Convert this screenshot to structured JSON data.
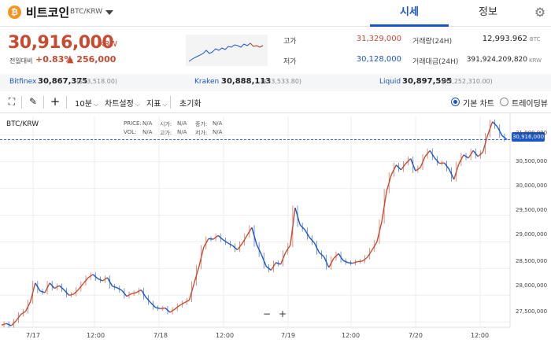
{
  "header": {
    "coin_icon": "bitcoin-icon",
    "coin_symbol": "₿",
    "coin_name": "비트코인",
    "pair": "BTC/KRW",
    "tabs": [
      {
        "label": "시세",
        "active": true
      },
      {
        "label": "정보",
        "active": false
      }
    ],
    "settings_icon": "gear-icon"
  },
  "price": {
    "current": "30,916,000",
    "unit": "KRW",
    "prev_label": "전일대비",
    "change_pct": "+0.83%",
    "change_abs": "▲ 256,000",
    "color": "#c84a31"
  },
  "stats": {
    "high_label": "고가",
    "high_value": "31,329,000",
    "low_label": "저가",
    "low_value": "30,128,000",
    "volume_label": "거래량(24H)",
    "volume_value": "12,993.962",
    "volume_unit": "BTC",
    "amount_label": "거래대금(24H)",
    "amount_value": "391,924,209,820",
    "amount_unit": "KRW"
  },
  "exchanges": [
    {
      "name": "Bitfinex",
      "price": "30,867,375",
      "usd": "($23,518.00)"
    },
    {
      "name": "Kraken",
      "price": "30,888,113",
      "usd": "($23,533.80)"
    },
    {
      "name": "Liquid",
      "price": "30,897,595",
      "usd": "(¥3,252,310.00)"
    }
  ],
  "toolbar": {
    "fullscreen_icon": "expand-icon",
    "draw_icon": "pencil-icon",
    "crosshair_icon": "crosshair-icon",
    "interval": "10분",
    "chart_settings": "차트설정",
    "indicators": "지표",
    "reset": "초기화",
    "view_basic": "기본 차트",
    "view_tradingview": "트레이딩뷰"
  },
  "chart": {
    "pair_label": "BTC/KRW",
    "ohlc": {
      "price_label": "PRICE:",
      "price_val": "N/A",
      "open_label": "시가:",
      "open_val": "N/A",
      "close_label": "종가:",
      "close_val": "N/A",
      "vol_label": "VOL:",
      "vol_val": "N/A",
      "high_label": "고가:",
      "high_val": "N/A",
      "low_label": "저가:",
      "low_val": "N/A"
    },
    "zoom_out": "−",
    "zoom_in": "+",
    "current_tag": "30,916,000"
  },
  "chart_data": {
    "type": "line",
    "up_color": "#c84a31",
    "down_color": "#1a55c7",
    "current_line_color": "#1a55c7",
    "x_ticks": [
      "7/17",
      "12:00",
      "7/18",
      "12:00",
      "7/19",
      "12:00",
      "7/20",
      "12:00"
    ],
    "y_ticks": [
      "31,000,000",
      "30,500,000",
      "30,000,000",
      "29,500,000",
      "29,000,000",
      "28,500,000",
      "28,000,000",
      "27,500,000"
    ],
    "ylim": [
      27400000,
      31350000
    ],
    "current": 30916000,
    "close_series": [
      27440000,
      27470000,
      27430000,
      27520000,
      27640000,
      27700000,
      27880000,
      28230000,
      28080000,
      28050000,
      28230000,
      28130000,
      28180000,
      28100000,
      28000000,
      28020000,
      28110000,
      28220000,
      28330000,
      28390000,
      28310000,
      28270000,
      28330000,
      28170000,
      28140000,
      28090000,
      27980000,
      28030000,
      28050000,
      28100000,
      27960000,
      27860000,
      27770000,
      27750000,
      27760000,
      27680000,
      27740000,
      27810000,
      27860000,
      27910000,
      28220000,
      28530000,
      28900000,
      29060000,
      29050000,
      29120000,
      29040000,
      28980000,
      28930000,
      28850000,
      28970000,
      29120000,
      29270000,
      28950000,
      28760000,
      28540000,
      28470000,
      28610000,
      28580000,
      28800000,
      28940000,
      29640000,
      29320000,
      29230000,
      29080000,
      28980000,
      28800000,
      28720000,
      28520000,
      28690000,
      28780000,
      28650000,
      28610000,
      28600000,
      28630000,
      28640000,
      28710000,
      28850000,
      29000000,
      29380000,
      29950000,
      30260000,
      30440000,
      30350000,
      30470000,
      30560000,
      30330000,
      30390000,
      30600000,
      30710000,
      30570000,
      30470000,
      30480000,
      30360000,
      30170000,
      30460000,
      30630000,
      30570000,
      30710000,
      30600000,
      30680000,
      31000000,
      31250000,
      31160000,
      30990000,
      30916000
    ]
  }
}
